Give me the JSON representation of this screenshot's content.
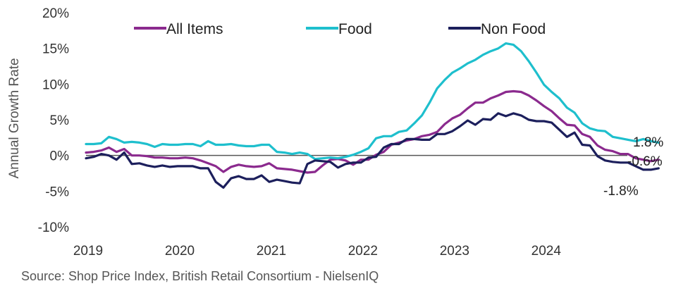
{
  "chart_data": {
    "type": "line",
    "ylabel": "Annual Growth Rate",
    "source": "Source: Shop Price Index, British Retail Consortium - NielsenIQ",
    "x_start": "2019-01",
    "x_tick_labels": [
      "2019",
      "2020",
      "2021",
      "2022",
      "2023",
      "2024"
    ],
    "y_tick_labels": [
      "20%",
      "15%",
      "10%",
      "5%",
      "0%",
      "-5%",
      "-10%"
    ],
    "ylim": [
      -10,
      20
    ],
    "legend_position": "top",
    "grid": false,
    "series": [
      {
        "name": "All Items",
        "color": "#8B2A8E",
        "values": [
          0.4,
          0.5,
          0.7,
          1.1,
          0.5,
          0.9,
          0.0,
          0.0,
          -0.1,
          -0.3,
          -0.3,
          -0.4,
          -0.4,
          -0.3,
          -0.4,
          -0.7,
          -1.1,
          -1.5,
          -2.3,
          -1.6,
          -1.3,
          -1.5,
          -1.6,
          -1.5,
          -1.1,
          -1.8,
          -1.9,
          -2.0,
          -2.2,
          -2.4,
          -2.3,
          -1.4,
          -0.6,
          -0.5,
          -0.7,
          -1.3,
          -0.6,
          -0.6,
          0.1,
          0.5,
          1.5,
          1.8,
          2.1,
          2.3,
          2.7,
          2.9,
          3.3,
          4.4,
          5.2,
          5.7,
          6.6,
          7.4,
          7.4,
          8.0,
          8.4,
          8.9,
          9.0,
          8.9,
          8.4,
          7.7,
          6.9,
          6.2,
          5.2,
          4.3,
          4.2,
          3.0,
          2.6,
          1.4,
          0.8,
          0.6,
          0.2,
          0.2,
          -0.4,
          -0.6,
          -0.8,
          -0.6
        ],
        "end_label": "-0.6%"
      },
      {
        "name": "Food",
        "color": "#1EBFCD",
        "values": [
          1.6,
          1.6,
          1.7,
          2.6,
          2.3,
          1.8,
          1.9,
          1.8,
          1.6,
          1.2,
          1.6,
          1.5,
          1.5,
          1.6,
          1.6,
          1.3,
          2.0,
          1.5,
          1.5,
          1.6,
          1.4,
          1.3,
          1.3,
          1.5,
          1.5,
          0.5,
          0.4,
          0.2,
          0.4,
          0.2,
          -0.5,
          -0.4,
          -0.3,
          -0.4,
          -0.2,
          0.1,
          0.5,
          1.0,
          2.4,
          2.7,
          2.7,
          3.3,
          3.5,
          4.5,
          5.6,
          7.4,
          9.4,
          10.6,
          11.6,
          12.2,
          12.9,
          13.4,
          14.1,
          14.6,
          15.0,
          15.7,
          15.5,
          14.6,
          13.2,
          11.6,
          9.9,
          8.9,
          8.0,
          6.7,
          6.0,
          4.5,
          3.8,
          3.5,
          3.4,
          2.6,
          2.4,
          2.2,
          2.0,
          2.3,
          2.0,
          1.8
        ],
        "end_label": "1.8%"
      },
      {
        "name": "Non Food",
        "color": "#1C1F5C",
        "values": [
          -0.4,
          -0.2,
          0.2,
          0.0,
          -0.6,
          0.4,
          -1.2,
          -1.1,
          -1.4,
          -1.6,
          -1.4,
          -1.6,
          -1.5,
          -1.5,
          -1.5,
          -1.8,
          -1.8,
          -3.7,
          -4.5,
          -3.2,
          -2.9,
          -3.3,
          -3.3,
          -2.8,
          -3.7,
          -3.4,
          -3.6,
          -3.8,
          -3.9,
          -1.2,
          -0.7,
          -0.8,
          -0.9,
          -1.7,
          -1.2,
          -1.0,
          -1.0,
          -0.3,
          -0.2,
          1.1,
          1.6,
          1.6,
          2.3,
          2.3,
          2.2,
          2.2,
          3.0,
          3.0,
          3.4,
          4.1,
          4.9,
          4.3,
          5.1,
          5.0,
          5.9,
          5.5,
          5.9,
          5.6,
          5.0,
          4.8,
          4.8,
          4.6,
          3.6,
          2.6,
          3.2,
          1.5,
          1.4,
          -0.1,
          -0.7,
          -0.9,
          -1.0,
          -1.0,
          -1.5,
          -2.0,
          -2.0,
          -1.8
        ],
        "end_label": "-1.8%"
      }
    ]
  }
}
